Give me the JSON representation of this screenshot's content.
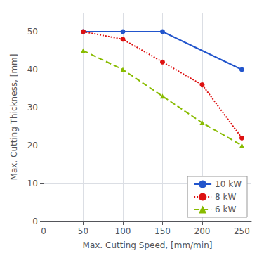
{
  "chart_data": {
    "type": "line",
    "xlabel": "Max. Cutting Speed, [mm/min]",
    "ylabel": "Max. Cutting Thickness, [mm]",
    "series": [
      {
        "name": "10 kW",
        "x": [
          50,
          100,
          150,
          250
        ],
        "values": [
          50,
          50,
          50,
          40
        ],
        "color": "#2255cc",
        "line_style": "solid",
        "marker": "circle"
      },
      {
        "name": "8 kW",
        "x": [
          50,
          100,
          150,
          200,
          250
        ],
        "values": [
          50,
          48,
          42,
          36,
          22
        ],
        "color": "#dd1111",
        "line_style": "dotted",
        "marker": "circle"
      },
      {
        "name": "6 kW",
        "x": [
          50,
          100,
          150,
          200,
          250
        ],
        "values": [
          45,
          40,
          33,
          26,
          20
        ],
        "color": "#88bb00",
        "line_style": "dashed",
        "marker": "triangle"
      }
    ],
    "xlim": [
      0,
      262
    ],
    "ylim": [
      0,
      55
    ],
    "xticks": [
      0,
      50,
      100,
      150,
      200,
      250
    ],
    "yticks": [
      0,
      10,
      20,
      30,
      40,
      50
    ],
    "grid": true,
    "legend": "lower right"
  }
}
